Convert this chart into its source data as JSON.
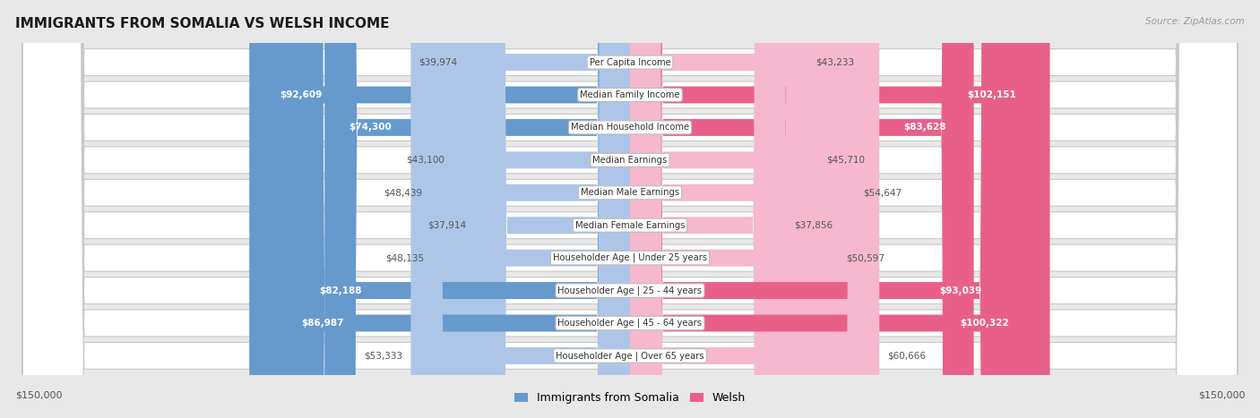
{
  "title": "IMMIGRANTS FROM SOMALIA VS WELSH INCOME",
  "source": "Source: ZipAtlas.com",
  "categories": [
    "Per Capita Income",
    "Median Family Income",
    "Median Household Income",
    "Median Earnings",
    "Median Male Earnings",
    "Median Female Earnings",
    "Householder Age | Under 25 years",
    "Householder Age | 25 - 44 years",
    "Householder Age | 45 - 64 years",
    "Householder Age | Over 65 years"
  ],
  "somalia_values": [
    39974,
    92609,
    74300,
    43100,
    48439,
    37914,
    48135,
    82188,
    86987,
    53333
  ],
  "welsh_values": [
    43233,
    102151,
    83628,
    45710,
    54647,
    37856,
    50597,
    93039,
    100322,
    60666
  ],
  "somalia_labels": [
    "$39,974",
    "$92,609",
    "$74,300",
    "$43,100",
    "$48,439",
    "$37,914",
    "$48,135",
    "$82,188",
    "$86,987",
    "$53,333"
  ],
  "welsh_labels": [
    "$43,233",
    "$102,151",
    "$83,628",
    "$45,710",
    "$54,647",
    "$37,856",
    "$50,597",
    "$93,039",
    "$100,322",
    "$60,666"
  ],
  "somalia_color_light": "#adc6e8",
  "somalia_color_dark": "#6699cc",
  "welsh_color_light": "#f5b8ce",
  "welsh_color_dark": "#e8608a",
  "max_value": 150000,
  "fig_bg": "#e8e8e8",
  "row_bg": "#f0f0f0",
  "bottom_label_left": "$150,000",
  "bottom_label_right": "$150,000",
  "legend_somalia": "Immigrants from Somalia",
  "legend_welsh": "Welsh",
  "inside_label_threshold": 65000
}
